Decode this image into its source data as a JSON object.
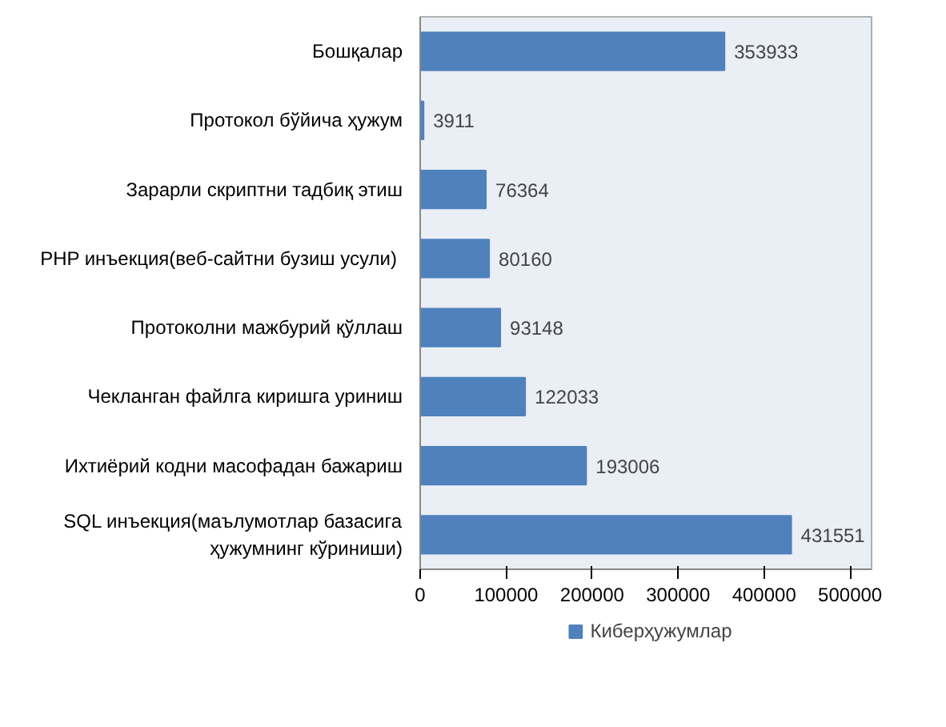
{
  "chart_data": {
    "type": "bar",
    "orientation": "horizontal",
    "categories": [
      "Бошқалар",
      "Протокол бўйича ҳужум",
      "Зарарли скриптни тадбиқ этиш",
      "PHP инъекция(веб-сайтни  бузиш усули)",
      "Протоколни мажбурий қўллаш",
      "Чекланган файлга киришга уриниш",
      "Ихтиёрий кодни масофадан бажариш",
      "SQL инъекция(маълумотлар базасига\nҳужумнинг кўриниши)"
    ],
    "series": [
      {
        "name": "Киберҳужумлар",
        "color": "#4f81bd",
        "values": [
          353933,
          3911,
          76364,
          80160,
          93148,
          122033,
          193006,
          431551
        ]
      }
    ],
    "xlim": [
      0,
      525000
    ],
    "xticks": [
      0,
      100000,
      200000,
      300000,
      400000,
      500000
    ],
    "data_labels": true,
    "legend": "bottom",
    "grid": false
  }
}
